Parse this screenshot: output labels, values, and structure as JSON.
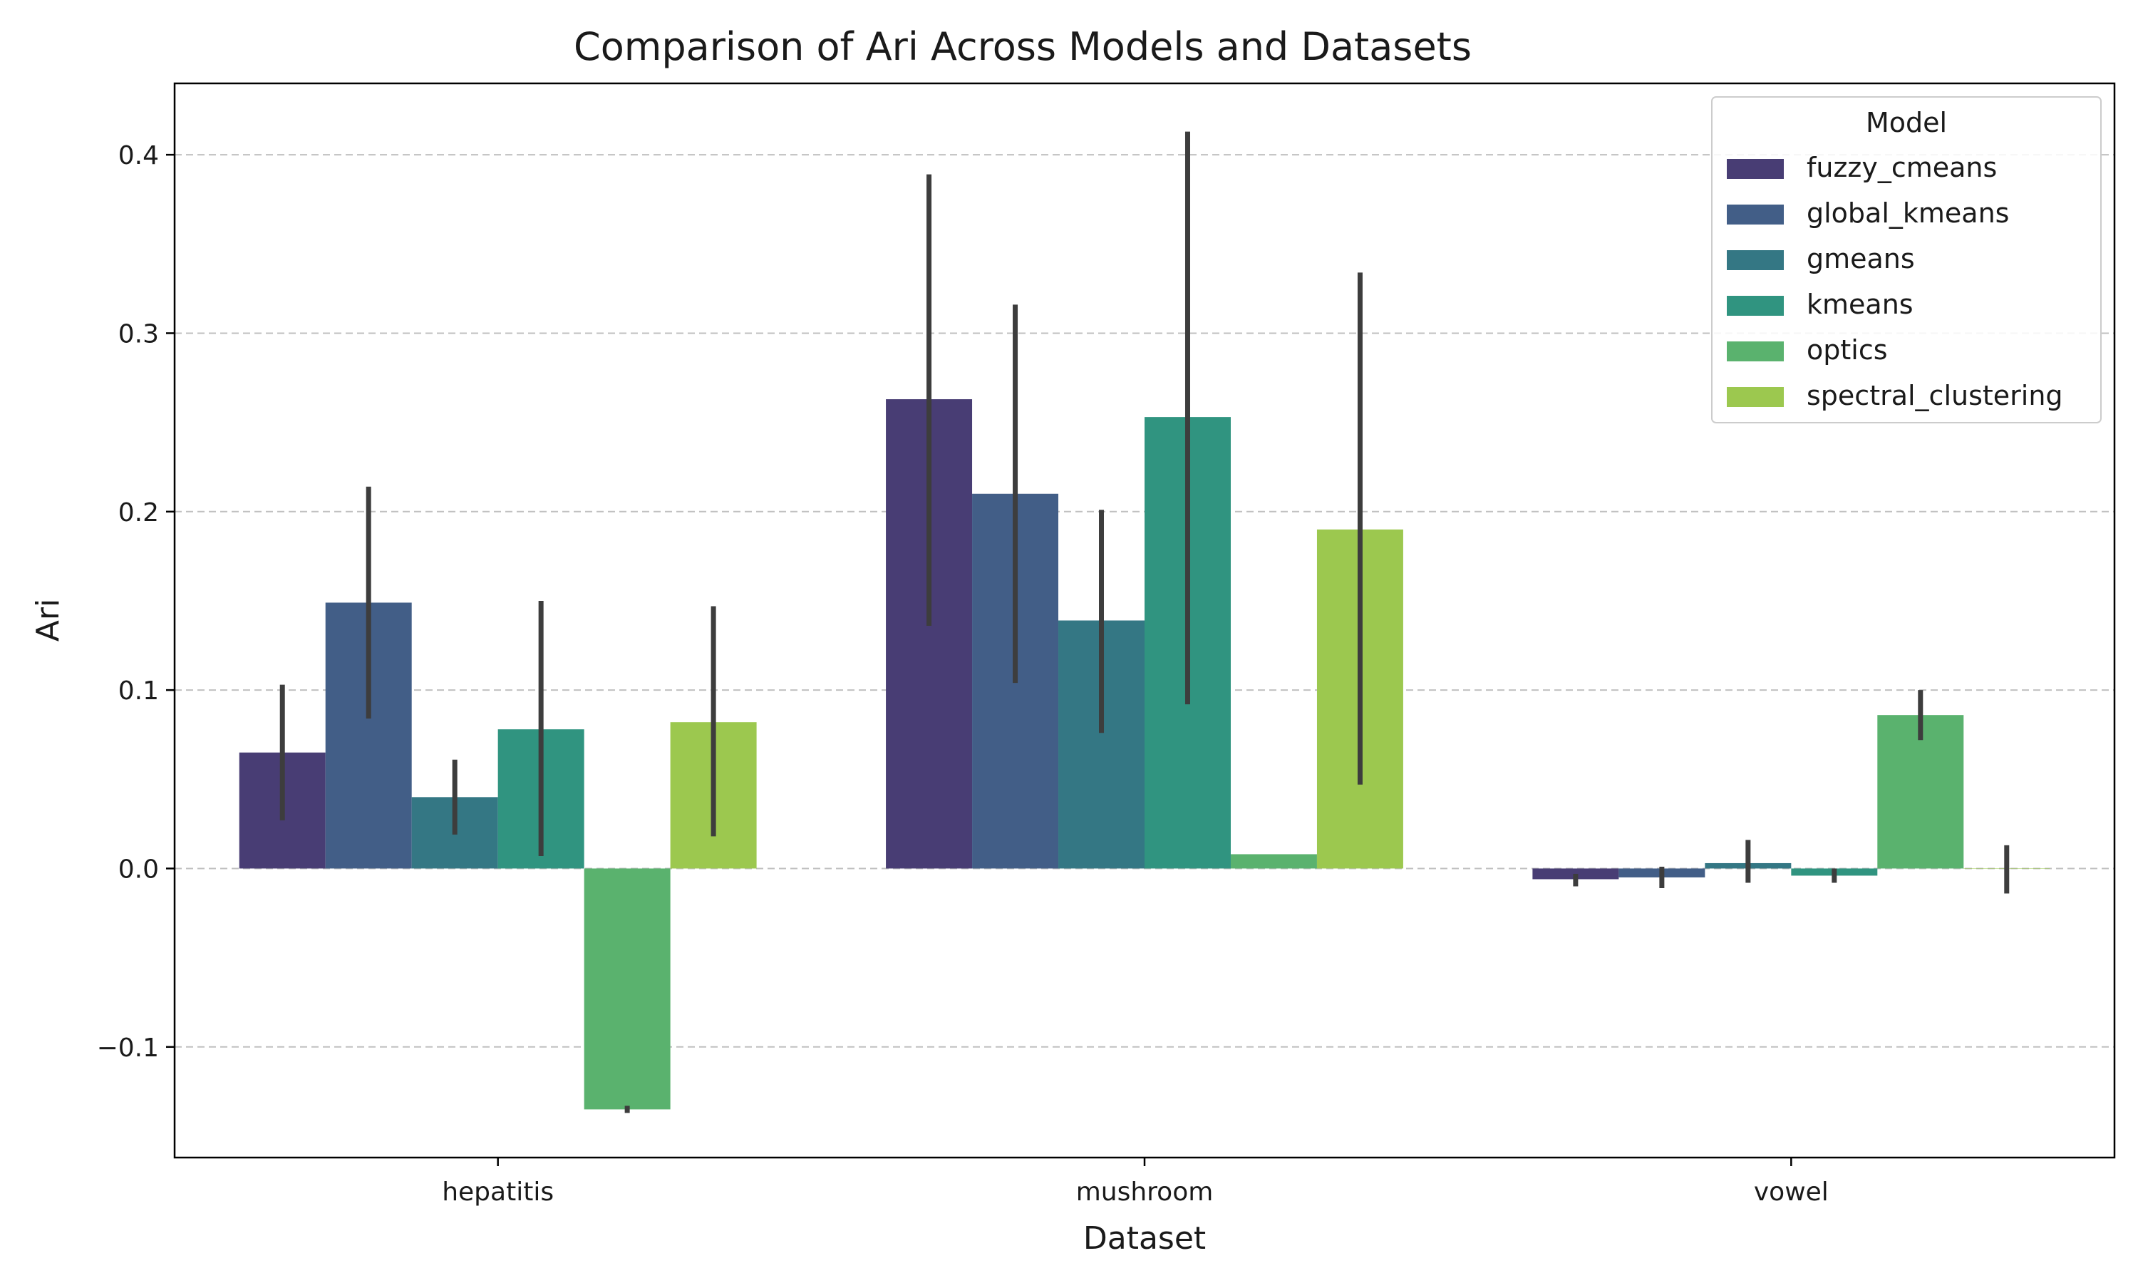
{
  "chart_data": {
    "type": "bar",
    "title": "Comparison of Ari Across Models and Datasets",
    "xlabel": "Dataset",
    "ylabel": "Ari",
    "categories": [
      "hepatitis",
      "mushroom",
      "vowel"
    ],
    "ylim": [
      -0.162,
      0.44
    ],
    "yticks": [
      -0.1,
      0.0,
      0.1,
      0.2,
      0.3,
      0.4
    ],
    "ytick_labels": [
      "−0.1",
      "0.0",
      "0.1",
      "0.2",
      "0.3",
      "0.4"
    ],
    "grid": "y-dashed",
    "legend": {
      "title": "Model",
      "placement": "top-right"
    },
    "series": [
      {
        "name": "fuzzy_cmeans",
        "color": "#483d74",
        "values": [
          0.065,
          0.263,
          -0.006
        ],
        "err_low": [
          0.027,
          0.136,
          -0.01
        ],
        "err_high": [
          0.103,
          0.389,
          -0.003
        ]
      },
      {
        "name": "global_kmeans",
        "color": "#425e87",
        "values": [
          0.149,
          0.21,
          -0.005
        ],
        "err_low": [
          0.084,
          0.104,
          -0.011
        ],
        "err_high": [
          0.214,
          0.316,
          0.001
        ]
      },
      {
        "name": "gmeans",
        "color": "#347784",
        "values": [
          0.04,
          0.139,
          0.003
        ],
        "err_low": [
          0.019,
          0.076,
          -0.008
        ],
        "err_high": [
          0.061,
          0.201,
          0.016
        ]
      },
      {
        "name": "kmeans",
        "color": "#309480",
        "values": [
          0.078,
          0.253,
          -0.004
        ],
        "err_low": [
          0.007,
          0.092,
          -0.008
        ],
        "err_high": [
          0.15,
          0.413,
          0.0
        ]
      },
      {
        "name": "optics",
        "color": "#5ab26e",
        "values": [
          -0.135,
          0.008,
          0.086
        ],
        "err_low": [
          -0.137,
          0.008,
          0.072
        ],
        "err_high": [
          -0.133,
          0.008,
          0.1
        ]
      },
      {
        "name": "spectral_clustering",
        "color": "#9cc84f",
        "values": [
          0.082,
          0.19,
          0.0
        ],
        "err_low": [
          0.018,
          0.047,
          -0.014
        ],
        "err_high": [
          0.147,
          0.334,
          0.013
        ]
      }
    ]
  }
}
